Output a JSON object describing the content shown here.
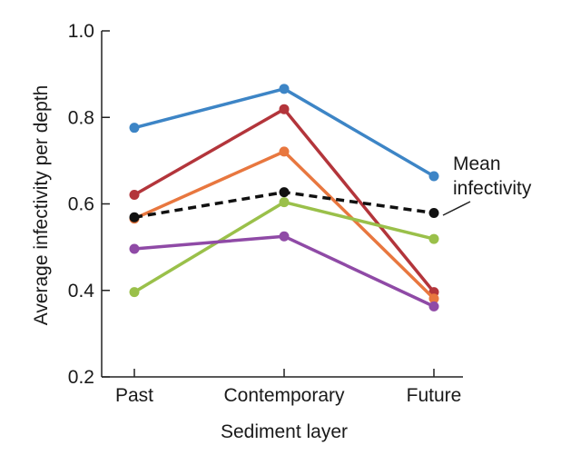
{
  "chart_data": {
    "type": "line",
    "xlabel": "Sediment layer",
    "ylabel": "Average infectivity per depth",
    "categories": [
      "Past",
      "Contemporary",
      "Future"
    ],
    "ylim": [
      0.2,
      1.0
    ],
    "yticks": [
      "0.2",
      "0.4",
      "0.6",
      "0.8",
      "1.0"
    ],
    "grid": false,
    "series": [
      {
        "color": "#3d85c6",
        "dashed": false,
        "values": [
          0.776,
          0.866,
          0.664
        ]
      },
      {
        "color": "#b3353b",
        "dashed": false,
        "values": [
          0.621,
          0.819,
          0.396
        ]
      },
      {
        "color": "#e8773f",
        "dashed": false,
        "values": [
          0.566,
          0.721,
          0.381
        ]
      },
      {
        "color": "#9ac04a",
        "dashed": false,
        "values": [
          0.396,
          0.604,
          0.519
        ]
      },
      {
        "color": "#8f4aa6",
        "dashed": false,
        "values": [
          0.496,
          0.525,
          0.363
        ]
      },
      {
        "name": "Mean infectivity",
        "color": "#111111",
        "dashed": true,
        "values": [
          0.569,
          0.627,
          0.579
        ]
      }
    ],
    "annotation": {
      "lines": [
        "Mean",
        "infectivity"
      ]
    }
  }
}
